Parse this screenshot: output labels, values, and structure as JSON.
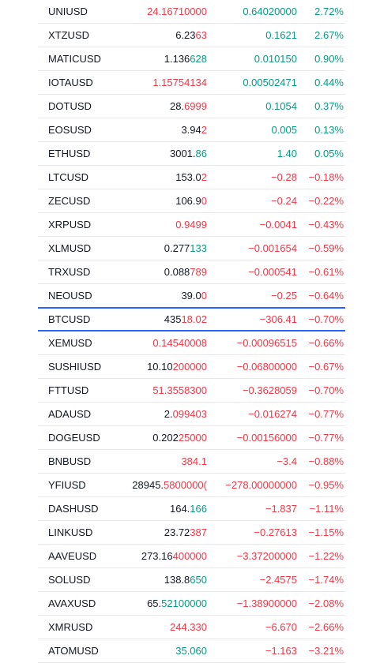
{
  "watchlist": {
    "rows": [
      {
        "symbol": "UNIUSD",
        "last_head": "24.16710000",
        "last_tail": "",
        "last_tone": "all-down",
        "change": "0.64020000",
        "change_dir": "up",
        "pct": "2.72%"
      },
      {
        "symbol": "XTZUSD",
        "last_head": "6.23",
        "last_tail": "63",
        "last_tone": "down",
        "change": "0.1621",
        "change_dir": "up",
        "pct": "2.67%"
      },
      {
        "symbol": "MATICUSD",
        "last_head": "1.136",
        "last_tail": "628",
        "last_tone": "up",
        "change": "0.010150",
        "change_dir": "up",
        "pct": "0.90%"
      },
      {
        "symbol": "IOTAUSD",
        "last_head": "1.15754134",
        "last_tail": "",
        "last_tone": "all-down",
        "change": "0.00502471",
        "change_dir": "up",
        "pct": "0.44%"
      },
      {
        "symbol": "DOTUSD",
        "last_head": "28.",
        "last_tail": "6999",
        "last_tone": "down",
        "change": "0.1054",
        "change_dir": "up",
        "pct": "0.37%"
      },
      {
        "symbol": "EOSUSD",
        "last_head": "3.94",
        "last_tail": "2",
        "last_tone": "down",
        "change": "0.005",
        "change_dir": "up",
        "pct": "0.13%"
      },
      {
        "symbol": "ETHUSD",
        "last_head": "3001.",
        "last_tail": "86",
        "last_tone": "up",
        "change": "1.40",
        "change_dir": "up",
        "pct": "0.05%"
      },
      {
        "symbol": "LTCUSD",
        "last_head": "153.0",
        "last_tail": "2",
        "last_tone": "down",
        "change": "−0.28",
        "change_dir": "down",
        "pct": "−0.18%"
      },
      {
        "symbol": "ZECUSD",
        "last_head": "106.9",
        "last_tail": "0",
        "last_tone": "down",
        "change": "−0.24",
        "change_dir": "down",
        "pct": "−0.22%"
      },
      {
        "symbol": "XRPUSD",
        "last_head": "0.9499",
        "last_tail": "",
        "last_tone": "all-down",
        "change": "−0.0041",
        "change_dir": "down",
        "pct": "−0.43%"
      },
      {
        "symbol": "XLMUSD",
        "last_head": "0.277",
        "last_tail": "133",
        "last_tone": "up",
        "change": "−0.001654",
        "change_dir": "down",
        "pct": "−0.59%"
      },
      {
        "symbol": "TRXUSD",
        "last_head": "0.088",
        "last_tail": "789",
        "last_tone": "down",
        "change": "−0.000541",
        "change_dir": "down",
        "pct": "−0.61%"
      },
      {
        "symbol": "NEOUSD",
        "last_head": "39.0",
        "last_tail": "0",
        "last_tone": "down",
        "change": "−0.25",
        "change_dir": "down",
        "pct": "−0.64%"
      },
      {
        "symbol": "BTCUSD",
        "last_head": "435",
        "last_tail": "18.02",
        "last_tone": "down",
        "change": "−306.41",
        "change_dir": "down",
        "pct": "−0.70%",
        "active": true
      },
      {
        "symbol": "XEMUSD",
        "last_head": "0.14540008",
        "last_tail": "",
        "last_tone": "all-down",
        "change": "−0.00096515",
        "change_dir": "down",
        "pct": "−0.66%"
      },
      {
        "symbol": "SUSHIUSD",
        "last_head": "10.10",
        "last_tail": "200000",
        "last_tone": "down",
        "change": "−0.06800000",
        "change_dir": "down",
        "pct": "−0.67%"
      },
      {
        "symbol": "FTTUSD",
        "last_head": "51.3558300",
        "last_tail": "",
        "last_tone": "all-down",
        "change": "−0.3628059",
        "change_dir": "down",
        "pct": "−0.70%"
      },
      {
        "symbol": "ADAUSD",
        "last_head": "2.",
        "last_tail": "099403",
        "last_tone": "down",
        "change": "−0.016274",
        "change_dir": "down",
        "pct": "−0.77%"
      },
      {
        "symbol": "DOGEUSD",
        "last_head": "0.202",
        "last_tail": "25000",
        "last_tone": "down",
        "change": "−0.00156000",
        "change_dir": "down",
        "pct": "−0.77%"
      },
      {
        "symbol": "BNBUSD",
        "last_head": "384.1",
        "last_tail": "",
        "last_tone": "all-down",
        "change": "−3.4",
        "change_dir": "down",
        "pct": "−0.88%"
      },
      {
        "symbol": "YFIUSD",
        "last_head": "28945.",
        "last_tail": "5800000(",
        "last_tone": "down",
        "change": "−278.00000000",
        "change_dir": "down",
        "pct": "−0.95%"
      },
      {
        "symbol": "DASHUSD",
        "last_head": "164.",
        "last_tail": "166",
        "last_tone": "up",
        "change": "−1.837",
        "change_dir": "down",
        "pct": "−1.11%"
      },
      {
        "symbol": "LINKUSD",
        "last_head": "23.72",
        "last_tail": "387",
        "last_tone": "down",
        "change": "−0.27613",
        "change_dir": "down",
        "pct": "−1.15%"
      },
      {
        "symbol": "AAVEUSD",
        "last_head": "273.16",
        "last_tail": "400000",
        "last_tone": "down",
        "change": "−3.37200000",
        "change_dir": "down",
        "pct": "−1.22%"
      },
      {
        "symbol": "SOLUSD",
        "last_head": "138.8",
        "last_tail": "650",
        "last_tone": "up",
        "change": "−2.4575",
        "change_dir": "down",
        "pct": "−1.74%"
      },
      {
        "symbol": "AVAXUSD",
        "last_head": "65.",
        "last_tail": "52100000",
        "last_tone": "up",
        "change": "−1.38900000",
        "change_dir": "down",
        "pct": "−2.08%"
      },
      {
        "symbol": "XMRUSD",
        "last_head": "244.330",
        "last_tail": "",
        "last_tone": "all-down",
        "change": "−6.670",
        "change_dir": "down",
        "pct": "−2.66%"
      },
      {
        "symbol": "ATOMUSD",
        "last_head": "35.060",
        "last_tail": "",
        "last_tone": "all-up",
        "change": "−1.163",
        "change_dir": "down",
        "pct": "−3.21%"
      }
    ]
  },
  "colors": {
    "up": "#089981",
    "down": "#f23645",
    "text": "#131722",
    "active_border": "#2962ff",
    "row_divider": "#e6e8ec"
  }
}
